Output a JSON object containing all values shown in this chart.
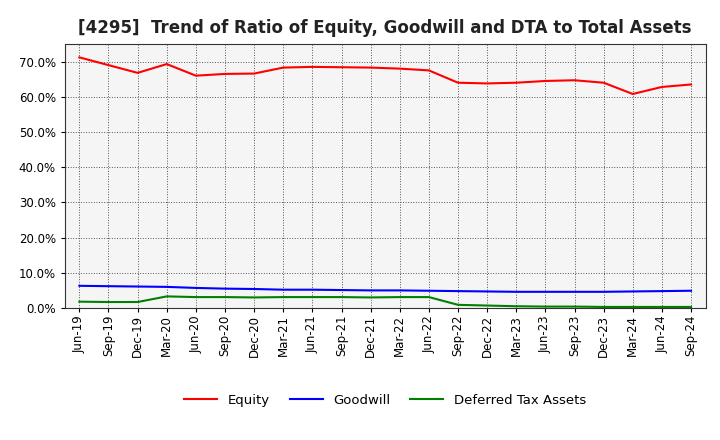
{
  "title": "[4295]  Trend of Ratio of Equity, Goodwill and DTA to Total Assets",
  "x_labels": [
    "Jun-19",
    "Sep-19",
    "Dec-19",
    "Mar-20",
    "Jun-20",
    "Sep-20",
    "Dec-20",
    "Mar-21",
    "Jun-21",
    "Sep-21",
    "Dec-21",
    "Mar-22",
    "Jun-22",
    "Sep-22",
    "Dec-22",
    "Mar-23",
    "Jun-23",
    "Sep-23",
    "Dec-23",
    "Mar-24",
    "Jun-24",
    "Sep-24"
  ],
  "equity": [
    0.712,
    0.69,
    0.668,
    0.693,
    0.66,
    0.665,
    0.666,
    0.683,
    0.685,
    0.684,
    0.683,
    0.68,
    0.675,
    0.64,
    0.638,
    0.64,
    0.645,
    0.647,
    0.64,
    0.608,
    0.628,
    0.635
  ],
  "goodwill": [
    0.063,
    0.062,
    0.061,
    0.06,
    0.057,
    0.055,
    0.054,
    0.052,
    0.052,
    0.051,
    0.05,
    0.05,
    0.049,
    0.048,
    0.047,
    0.046,
    0.046,
    0.046,
    0.046,
    0.047,
    0.048,
    0.049
  ],
  "dta": [
    0.018,
    0.017,
    0.017,
    0.033,
    0.031,
    0.031,
    0.03,
    0.031,
    0.031,
    0.031,
    0.03,
    0.031,
    0.031,
    0.009,
    0.007,
    0.005,
    0.004,
    0.004,
    0.003,
    0.003,
    0.003,
    0.003
  ],
  "equity_color": "#ff0000",
  "goodwill_color": "#0000ff",
  "dta_color": "#008000",
  "background_color": "#ffffff",
  "plot_bg_color": "#f5f5f5",
  "grid_color": "#555555",
  "ylim": [
    0.0,
    0.75
  ],
  "yticks": [
    0.0,
    0.1,
    0.2,
    0.3,
    0.4,
    0.5,
    0.6,
    0.7
  ],
  "legend_labels": [
    "Equity",
    "Goodwill",
    "Deferred Tax Assets"
  ],
  "title_fontsize": 12,
  "axis_fontsize": 8.5,
  "legend_fontsize": 9.5
}
